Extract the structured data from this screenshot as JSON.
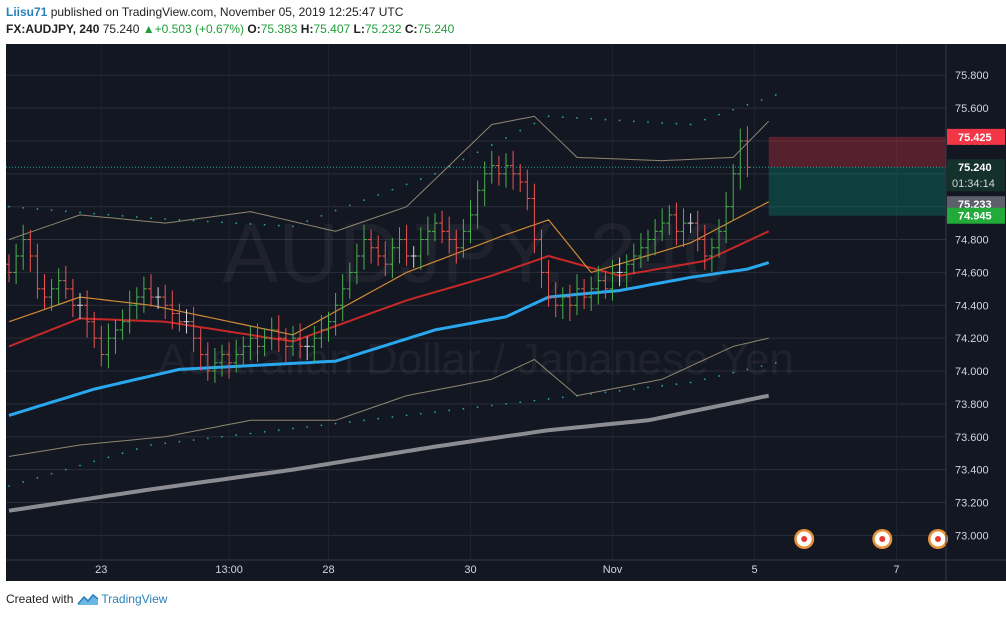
{
  "header": {
    "user": "Liisu71",
    "published_text": "published on TradingView.com, November 05, 2019 12:25:47 UTC",
    "symbol": "FX:AUDJPY, 240",
    "last": "75.240",
    "change": "+0.503 (+0.67%)",
    "open_label": "O:",
    "open": "75.383",
    "high_label": "H:",
    "high": "75.407",
    "low_label": "L:",
    "low": "75.232",
    "close_label": "C:",
    "close": "75.240"
  },
  "watermark": {
    "line1": "AUDJPY, 240",
    "line2": "Australian Dollar / Japanese Yen"
  },
  "footer": {
    "created_with": "Created with",
    "brand": "TradingView"
  },
  "colors": {
    "background": "#131722",
    "up": "#4caf50",
    "down": "#ef5350",
    "neutral_bar": "#d1d4dc",
    "ema_fast": "#29a8f0",
    "ema_slow": "#8c8d93",
    "ma_red": "#c62828",
    "ma_orange": "#d08a32",
    "band": "#9c9479",
    "psar": "#26a69a",
    "last_price": "#26a69a",
    "stop_label": "#f23645",
    "target_label": "#22ab3a"
  },
  "chart_data": {
    "type": "ohlc",
    "y_ticks": [
      75.8,
      75.6,
      75.4,
      75.2,
      75.0,
      74.8,
      74.6,
      74.4,
      74.2,
      74.0,
      73.8,
      73.6,
      73.4,
      73.2,
      73.0
    ],
    "ylim": [
      72.85,
      75.99
    ],
    "x_ticks": [
      {
        "label": "23",
        "bar": 13
      },
      {
        "label": "13:00",
        "bar": 31
      },
      {
        "label": "28",
        "bar": 45
      },
      {
        "label": "30",
        "bar": 65
      },
      {
        "label": "Nov",
        "bar": 85
      },
      {
        "label": "5",
        "bar": 105
      },
      {
        "label": "7",
        "bar": 125
      }
    ],
    "bars_total": 132,
    "closes": [
      74.6,
      74.7,
      74.8,
      74.7,
      74.5,
      74.45,
      74.5,
      74.55,
      74.5,
      74.4,
      74.4,
      74.3,
      74.2,
      74.1,
      74.2,
      74.25,
      74.3,
      74.4,
      74.45,
      74.5,
      74.45,
      74.45,
      74.4,
      74.35,
      74.3,
      74.3,
      74.2,
      74.1,
      74.0,
      74.05,
      74.1,
      74.05,
      74.1,
      74.15,
      74.2,
      74.15,
      74.2,
      74.25,
      74.2,
      74.15,
      74.2,
      74.15,
      74.15,
      74.2,
      74.25,
      74.3,
      74.4,
      74.5,
      74.6,
      74.7,
      74.8,
      74.75,
      74.7,
      74.65,
      74.75,
      74.8,
      74.7,
      74.7,
      74.8,
      74.85,
      74.9,
      74.85,
      74.8,
      74.75,
      74.85,
      74.95,
      75.1,
      75.2,
      75.25,
      75.2,
      75.25,
      75.2,
      75.15,
      75.05,
      74.8,
      74.6,
      74.45,
      74.4,
      74.45,
      74.4,
      74.5,
      74.45,
      74.5,
      74.55,
      74.5,
      74.6,
      74.6,
      74.65,
      74.7,
      74.75,
      74.8,
      74.85,
      74.9,
      74.95,
      74.85,
      74.9,
      74.9,
      74.8,
      74.7,
      74.75,
      74.85,
      75.0,
      75.2,
      75.4,
      75.24
    ],
    "indicators": {
      "ema_fast": [
        [
          0,
          73.73
        ],
        [
          12,
          73.89
        ],
        [
          24,
          74.01
        ],
        [
          46,
          74.06
        ],
        [
          60,
          74.25
        ],
        [
          70,
          74.33
        ],
        [
          76,
          74.45
        ],
        [
          86,
          74.49
        ],
        [
          96,
          74.57
        ],
        [
          104,
          74.62
        ],
        [
          107,
          74.66
        ]
      ],
      "ema_slow": [
        [
          0,
          73.15
        ],
        [
          20,
          73.28
        ],
        [
          40,
          73.4
        ],
        [
          60,
          73.54
        ],
        [
          76,
          73.64
        ],
        [
          90,
          73.7
        ],
        [
          107,
          73.85
        ]
      ],
      "ma_red": [
        [
          0,
          74.15
        ],
        [
          10,
          74.32
        ],
        [
          22,
          74.3
        ],
        [
          40,
          74.18
        ],
        [
          56,
          74.43
        ],
        [
          68,
          74.58
        ],
        [
          76,
          74.7
        ],
        [
          86,
          74.58
        ],
        [
          98,
          74.67
        ],
        [
          107,
          74.85
        ]
      ],
      "ma_orange": [
        [
          0,
          74.3
        ],
        [
          10,
          74.45
        ],
        [
          20,
          74.4
        ],
        [
          40,
          74.22
        ],
        [
          56,
          74.6
        ],
        [
          70,
          74.83
        ],
        [
          76,
          74.92
        ],
        [
          82,
          74.6
        ],
        [
          96,
          74.78
        ],
        [
          107,
          75.03
        ]
      ],
      "band_upper": [
        [
          0,
          74.8
        ],
        [
          10,
          74.95
        ],
        [
          22,
          74.9
        ],
        [
          34,
          74.97
        ],
        [
          46,
          74.85
        ],
        [
          56,
          75.0
        ],
        [
          68,
          75.5
        ],
        [
          74,
          75.55
        ],
        [
          80,
          75.3
        ],
        [
          92,
          75.28
        ],
        [
          102,
          75.3
        ],
        [
          107,
          75.52
        ]
      ],
      "band_lower": [
        [
          0,
          73.48
        ],
        [
          10,
          73.55
        ],
        [
          22,
          73.6
        ],
        [
          34,
          73.7
        ],
        [
          46,
          73.7
        ],
        [
          56,
          73.85
        ],
        [
          68,
          73.95
        ],
        [
          74,
          74.07
        ],
        [
          80,
          73.85
        ],
        [
          92,
          73.95
        ],
        [
          102,
          74.15
        ],
        [
          107,
          74.2
        ]
      ],
      "psar_upper": [
        [
          0,
          75.0
        ],
        [
          20,
          74.93
        ],
        [
          40,
          74.88
        ],
        [
          60,
          75.2
        ],
        [
          76,
          75.55
        ],
        [
          96,
          75.5
        ],
        [
          108,
          75.68
        ]
      ],
      "psar_lower": [
        [
          0,
          73.3
        ],
        [
          20,
          73.55
        ],
        [
          40,
          73.65
        ],
        [
          60,
          73.75
        ],
        [
          80,
          73.85
        ],
        [
          96,
          73.93
        ],
        [
          108,
          74.05
        ]
      ]
    },
    "position": {
      "entry": 75.24,
      "stop": 75.425,
      "target": 74.945,
      "from_bar": 107,
      "to_bar": 132
    },
    "price_labels": {
      "stop": "75.425",
      "last": "75.240",
      "countdown": "01:34:14",
      "current": "75.233",
      "target": "74.945"
    },
    "events_bars": [
      112,
      123,
      133
    ]
  }
}
